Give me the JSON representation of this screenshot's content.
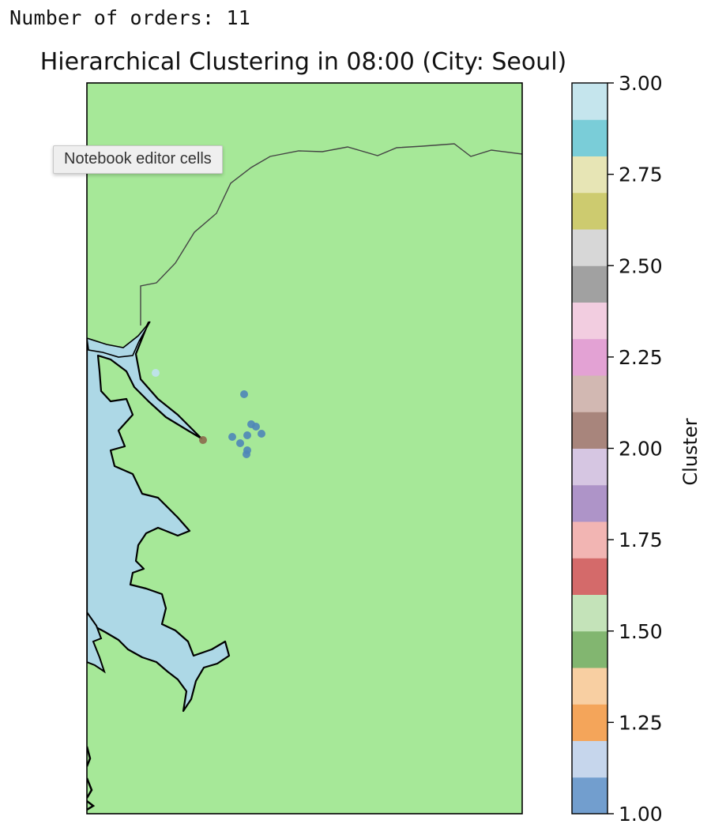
{
  "output": {
    "text": "Number of orders: 11"
  },
  "tooltip": {
    "text": "Notebook editor cells"
  },
  "colors": {
    "land": "#a6e898",
    "water": "#add8e6",
    "coastline": "#000000",
    "border": "#444444",
    "orders_cluster_1": "#4f86b8",
    "order_cluster_2": "#8c6a4d",
    "order_cluster_3": "#bfe3ec"
  },
  "chart_data": {
    "type": "scatter",
    "title": "Hierarchical Clustering in 08:00 (City: Seoul)",
    "colorbar": {
      "label": "Cluster",
      "range": [
        1.0,
        3.0
      ],
      "ticks": [
        "1.00",
        "1.25",
        "1.50",
        "1.75",
        "2.00",
        "2.25",
        "2.50",
        "2.75",
        "3.00"
      ],
      "colormap_bins": [
        "#729ece",
        "#c6d6ec",
        "#f4a55a",
        "#f8cfa2",
        "#82b670",
        "#c4e3b9",
        "#d46a6a",
        "#f2b5b3",
        "#ae94c8",
        "#d6c6e2",
        "#a8857c",
        "#d2b8b2",
        "#e3a2d4",
        "#f2cde0",
        "#a1a1a1",
        "#d7d7d7",
        "#cdcb6f",
        "#e7e5b5",
        "#7acdd8",
        "#c5e5ed"
      ]
    },
    "series": [
      {
        "cluster": 1,
        "count": 9
      },
      {
        "cluster": 2,
        "count": 1
      },
      {
        "cluster": 3,
        "count": 1
      }
    ]
  }
}
